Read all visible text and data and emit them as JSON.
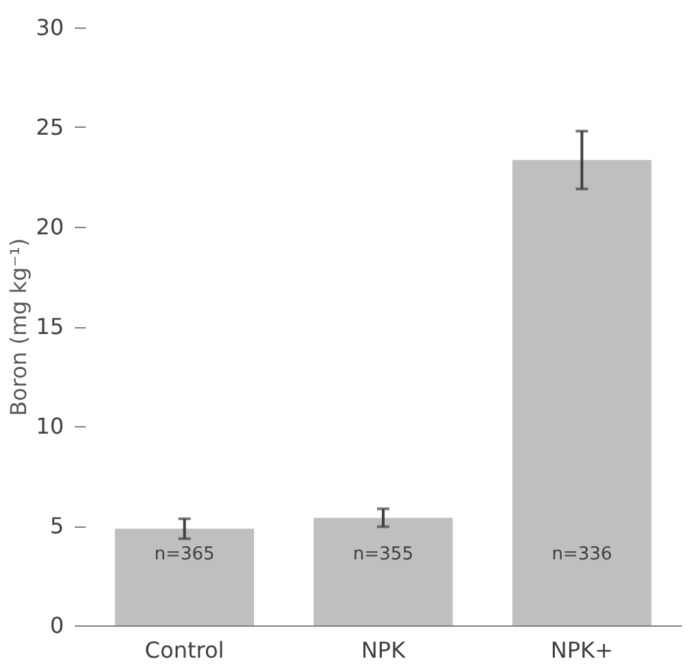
{
  "chart_data": {
    "type": "bar",
    "ylabel": "Boron (mg kg⁻¹)",
    "categories": [
      "Control",
      "NPK",
      "NPK+"
    ],
    "values": [
      4.85,
      5.4,
      23.35
    ],
    "errors": [
      0.5,
      0.45,
      1.45
    ],
    "color": "#bfbfbf",
    "ylim": [
      0,
      30
    ],
    "yticks": [
      0,
      5,
      10,
      15,
      20,
      25,
      30
    ],
    "grid": false,
    "annotations": [
      "n=365",
      "n=355",
      "n=336"
    ]
  }
}
